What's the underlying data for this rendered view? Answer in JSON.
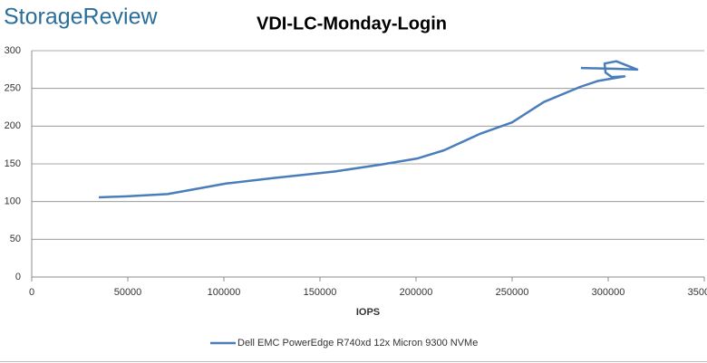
{
  "chart_data": {
    "type": "line",
    "logo": "StorageReview",
    "title": "VDI-LC-Monday-Login",
    "xlabel": "IOPS",
    "x": [
      34900,
      49500,
      70750,
      101400,
      125000,
      158000,
      181600,
      200500,
      214600,
      233500,
      250000,
      266500,
      285400,
      294800,
      308500,
      301900,
      298600,
      298100,
      304200,
      315100,
      304200,
      285800
    ],
    "series": [
      {
        "name": "Dell EMC PowerEdge R740xd 12x Micron 9300 NVMe",
        "color": "#4a7ebb",
        "values": [
          105.6,
          107,
          110,
          124,
          131,
          140,
          149,
          157,
          168,
          190,
          205,
          232,
          252,
          260,
          266,
          265,
          271,
          283,
          286,
          275,
          276,
          277
        ]
      }
    ],
    "xlim": [
      0,
      350000
    ],
    "xticks": [
      0,
      50000,
      100000,
      150000,
      200000,
      250000,
      300000,
      350000
    ],
    "ylim": [
      0,
      300
    ],
    "yticks": [
      0,
      50,
      100,
      150,
      200,
      250,
      300
    ],
    "grid": true,
    "legend": "bottom"
  }
}
